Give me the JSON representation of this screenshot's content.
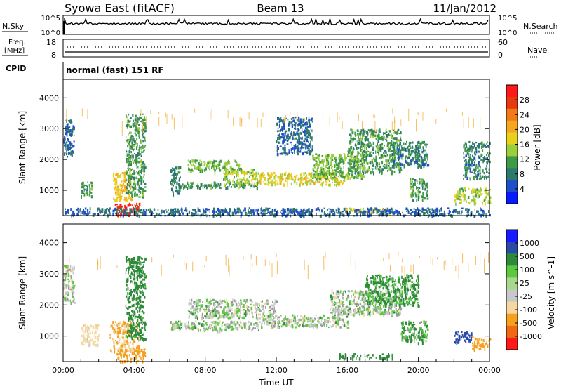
{
  "header": {
    "title_left": "Syowa East (fitACF)",
    "title_center": "Beam 13",
    "title_right": "11/Jan/2012"
  },
  "panels": {
    "nsky": {
      "label": "N.Sky",
      "ytick_top": "10^5",
      "ytick_bottom": "10^0",
      "right_label": "N.Search",
      "right_tick_top": "10^5",
      "right_tick_bottom": "10^0"
    },
    "freq": {
      "label_line1": "Freq.",
      "label_line2": "[MHz]",
      "ytick_top": "18",
      "ytick_bottom": "8",
      "right_label": "Nave",
      "right_tick_top": "60",
      "right_tick_bottom": "0"
    },
    "cpid": {
      "label": "CPID",
      "value": "normal (fast) 151 RF"
    }
  },
  "colors": {
    "power_scale": [
      "#0a1aff",
      "#1f4fc8",
      "#2e7a6a",
      "#3f9a48",
      "#9ccd3a",
      "#e8d020",
      "#f5a623",
      "#f07b18",
      "#e63a12",
      "#ff1a1a"
    ],
    "velocity_scale": [
      "#ff1a1a",
      "#f06a14",
      "#f5a020",
      "#f5d8a0",
      "#c8c8c8",
      "#a8d890",
      "#5cc840",
      "#2e8a3a",
      "#2a4aa8",
      "#1a1aff"
    ],
    "ground_scatter": "#9a9a9a"
  },
  "chart_data": [
    {
      "type": "heatmap",
      "name": "power",
      "xlabel": "",
      "ylabel": "Slant Range [km]",
      "xlim": [
        "00:00",
        "24:00"
      ],
      "ylim": [
        180,
        4600
      ],
      "xticks": [
        "00:00",
        "04:00",
        "08:00",
        "12:00",
        "16:00",
        "20:00",
        "00:00"
      ],
      "yticks": [
        1000,
        2000,
        3000,
        4000
      ],
      "colorbar": {
        "label": "Power [dB]",
        "ticks": [
          4,
          8,
          12,
          16,
          20,
          24,
          28
        ],
        "range": [
          0,
          30
        ]
      },
      "grid": false,
      "regions": [
        {
          "x": [
            0.0,
            0.6
          ],
          "y": [
            2100,
            3300
          ],
          "level": 6
        },
        {
          "x": [
            1.0,
            1.6
          ],
          "y": [
            800,
            1300
          ],
          "level": 10
        },
        {
          "x": [
            2.8,
            3.8
          ],
          "y": [
            700,
            1600
          ],
          "level": 18
        },
        {
          "x": [
            2.9,
            4.3
          ],
          "y": [
            200,
            600
          ],
          "level": 28
        },
        {
          "x": [
            3.5,
            4.6
          ],
          "y": [
            800,
            3500
          ],
          "level": 10
        },
        {
          "x": [
            6.0,
            6.6
          ],
          "y": [
            900,
            1800
          ],
          "level": 8
        },
        {
          "x": [
            6.5,
            11.0
          ],
          "y": [
            1100,
            1300
          ],
          "level": 10
        },
        {
          "x": [
            7.0,
            10.0
          ],
          "y": [
            1600,
            2000
          ],
          "level": 12
        },
        {
          "x": [
            9.0,
            11.0
          ],
          "y": [
            1200,
            1700
          ],
          "level": 14
        },
        {
          "x": [
            11.0,
            16.0
          ],
          "y": [
            1200,
            1600
          ],
          "level": 16
        },
        {
          "x": [
            12.0,
            14.0
          ],
          "y": [
            2200,
            3400
          ],
          "level": 6
        },
        {
          "x": [
            14.0,
            17.0
          ],
          "y": [
            1400,
            2200
          ],
          "level": 12
        },
        {
          "x": [
            15.5,
            18.5
          ],
          "y": [
            300,
            450
          ],
          "level": 16
        },
        {
          "x": [
            16.0,
            19.0
          ],
          "y": [
            1600,
            3000
          ],
          "level": 10
        },
        {
          "x": [
            18.5,
            20.5
          ],
          "y": [
            1800,
            2600
          ],
          "level": 8
        },
        {
          "x": [
            19.5,
            20.5
          ],
          "y": [
            700,
            1400
          ],
          "level": 10
        },
        {
          "x": [
            22.0,
            24.0
          ],
          "y": [
            600,
            1100
          ],
          "level": 14
        },
        {
          "x": [
            22.5,
            24.0
          ],
          "y": [
            1400,
            2600
          ],
          "level": 8
        },
        {
          "x": [
            0.0,
            24.0
          ],
          "y": [
            200,
            450
          ],
          "level": 6
        }
      ]
    },
    {
      "type": "heatmap",
      "name": "velocity",
      "xlabel": "Time UT",
      "ylabel": "Slant Range [km]",
      "xlim": [
        "00:00",
        "24:00"
      ],
      "ylim": [
        180,
        4600
      ],
      "xticks": [
        "00:00",
        "04:00",
        "08:00",
        "12:00",
        "16:00",
        "20:00",
        "00:00"
      ],
      "yticks": [
        1000,
        2000,
        3000,
        4000
      ],
      "colorbar": {
        "label": "Velocity [m s^-1]",
        "ticks": [
          1000,
          500,
          100,
          25,
          -25,
          -100,
          -500,
          -1000
        ]
      },
      "grid": false,
      "regions": [
        {
          "x": [
            0.0,
            0.6
          ],
          "y": [
            2100,
            3300
          ],
          "v": -25
        },
        {
          "x": [
            1.0,
            2.0
          ],
          "y": [
            700,
            1400
          ],
          "v": -200
        },
        {
          "x": [
            2.6,
            4.3
          ],
          "y": [
            500,
            1500
          ],
          "v": -500
        },
        {
          "x": [
            3.0,
            4.6
          ],
          "y": [
            200,
            600
          ],
          "v": -800
        },
        {
          "x": [
            3.5,
            4.6
          ],
          "y": [
            900,
            3600
          ],
          "v": 200
        },
        {
          "x": [
            6.0,
            11.0
          ],
          "y": [
            1200,
            1500
          ],
          "v": 0
        },
        {
          "x": [
            7.0,
            12.0
          ],
          "y": [
            1600,
            2200
          ],
          "v": 0
        },
        {
          "x": [
            11.0,
            16.0
          ],
          "y": [
            1300,
            1700
          ],
          "v": 0
        },
        {
          "x": [
            15.0,
            19.0
          ],
          "y": [
            1700,
            2500
          ],
          "v": 0
        },
        {
          "x": [
            15.5,
            18.5
          ],
          "y": [
            300,
            450
          ],
          "v": 300
        },
        {
          "x": [
            17.0,
            20.0
          ],
          "y": [
            2000,
            3000
          ],
          "v": 150
        },
        {
          "x": [
            19.0,
            20.5
          ],
          "y": [
            800,
            1500
          ],
          "v": 120
        },
        {
          "x": [
            22.0,
            23.0
          ],
          "y": [
            800,
            1200
          ],
          "v": 800
        },
        {
          "x": [
            23.0,
            24.0
          ],
          "y": [
            600,
            1000
          ],
          "v": -600
        }
      ]
    }
  ]
}
